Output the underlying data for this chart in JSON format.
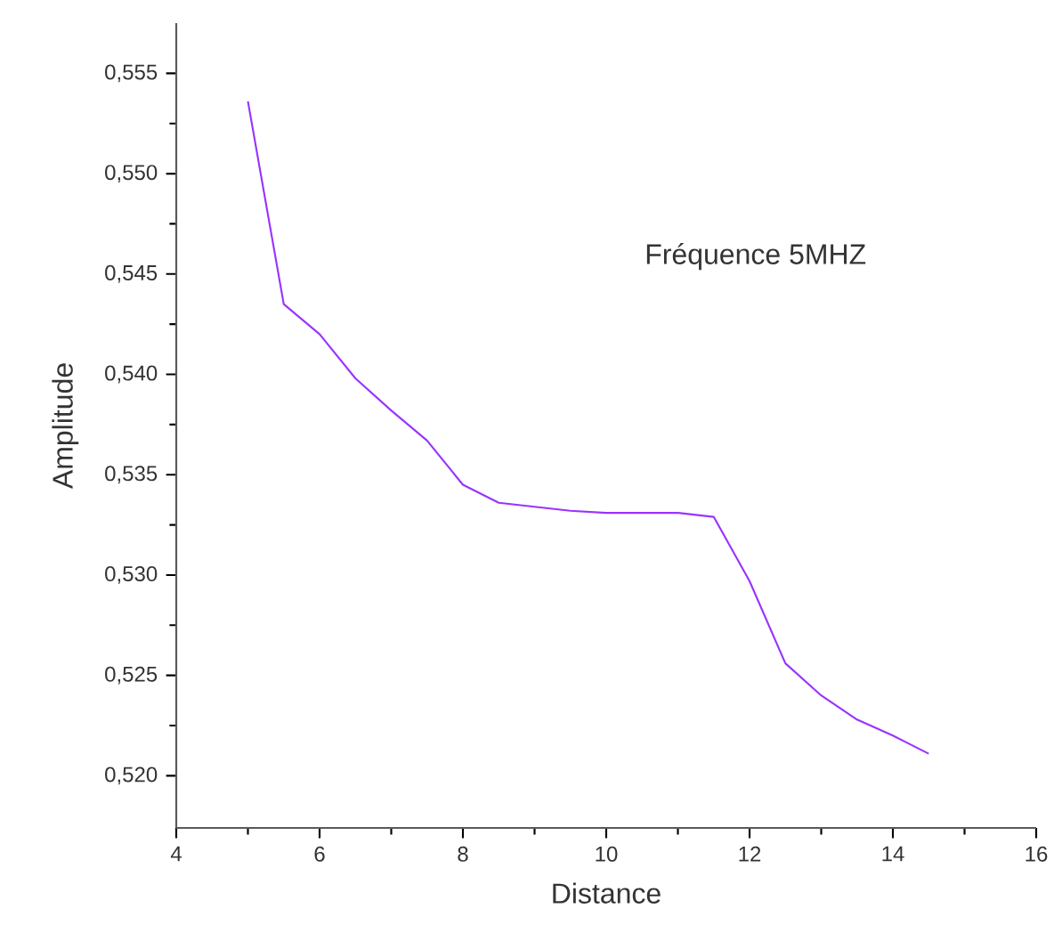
{
  "chart_data": {
    "type": "line",
    "xlabel": "Distance",
    "ylabel": "Amplitude",
    "annotations": [
      "Fréquence 5MHZ"
    ],
    "x": [
      5,
      5.5,
      6,
      6.5,
      7,
      7.5,
      8,
      8.5,
      9,
      9.5,
      10,
      10.5,
      11,
      11.5,
      12,
      12.5,
      13,
      13.5,
      14,
      14.5
    ],
    "series": [
      {
        "color": "#9933ff",
        "values": [
          0.5536,
          0.5435,
          0.542,
          0.5398,
          0.5382,
          0.5367,
          0.5345,
          0.5336,
          0.5334,
          0.5332,
          0.5331,
          0.5331,
          0.5331,
          0.5329,
          0.5297,
          0.5256,
          0.524,
          0.5228,
          0.522,
          0.5211
        ]
      }
    ],
    "xlim": [
      4,
      16
    ],
    "xticks": [
      4,
      6,
      8,
      10,
      12,
      14,
      16
    ],
    "ylim": [
      0.5174,
      0.5575
    ],
    "yticks": [
      {
        "value": 0.52,
        "label": "0,520"
      },
      {
        "value": 0.525,
        "label": "0,525"
      },
      {
        "value": 0.53,
        "label": "0,530"
      },
      {
        "value": 0.535,
        "label": "0,535"
      },
      {
        "value": 0.54,
        "label": "0,540"
      },
      {
        "value": 0.545,
        "label": "0,545"
      },
      {
        "value": 0.55,
        "label": "0,550"
      },
      {
        "value": 0.555,
        "label": "0,555"
      }
    ],
    "marker": "none",
    "line_style": "solid"
  }
}
